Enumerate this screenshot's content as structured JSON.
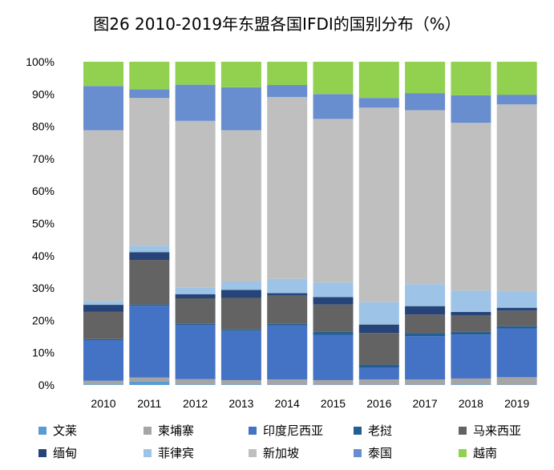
{
  "chart_data": {
    "type": "bar",
    "stacked": true,
    "normalized": true,
    "title": "图26 2010-2019年东盟各国IFDI的国别分布（%）",
    "xlabel": "",
    "ylabel": "",
    "ylim": [
      0,
      100
    ],
    "yticks": [
      "0%",
      "10%",
      "20%",
      "30%",
      "40%",
      "50%",
      "60%",
      "70%",
      "80%",
      "90%",
      "100%"
    ],
    "categories": [
      "2010",
      "2011",
      "2012",
      "2013",
      "2014",
      "2015",
      "2016",
      "2017",
      "2018",
      "2019"
    ],
    "legend_position": "bottom",
    "series": [
      {
        "name": "文莱",
        "color": "#5b9bd5",
        "values": [
          0.2,
          1.0,
          0.2,
          0.2,
          0.1,
          0.1,
          0.1,
          0.1,
          0.2,
          0.1
        ]
      },
      {
        "name": "柬埔寨",
        "color": "#a5a5a5",
        "values": [
          1.1,
          1.3,
          1.6,
          1.3,
          1.6,
          1.4,
          1.6,
          1.6,
          1.8,
          2.3
        ]
      },
      {
        "name": "印度尼西亚",
        "color": "#4472c4",
        "values": [
          12.6,
          22.2,
          16.8,
          15.3,
          16.7,
          14.0,
          3.6,
          13.4,
          13.6,
          15.1
        ]
      },
      {
        "name": "老挝",
        "color": "#255e91",
        "values": [
          0.3,
          0.4,
          0.3,
          0.4,
          0.5,
          0.9,
          1.0,
          1.0,
          0.8,
          0.7
        ]
      },
      {
        "name": "马来西亚",
        "color": "#636363",
        "values": [
          8.5,
          13.8,
          7.9,
          9.7,
          8.8,
          8.5,
          9.8,
          5.7,
          5.1,
          4.8
        ]
      },
      {
        "name": "缅甸",
        "color": "#264478",
        "values": [
          2.1,
          2.4,
          1.3,
          2.5,
          0.7,
          2.3,
          2.6,
          2.6,
          1.1,
          0.9
        ]
      },
      {
        "name": "菲律宾",
        "color": "#9dc3e6",
        "values": [
          1.1,
          2.0,
          2.1,
          2.6,
          4.4,
          4.5,
          6.9,
          6.8,
          6.6,
          5.1
        ]
      },
      {
        "name": "新加坡",
        "color": "#bfbfbf",
        "values": [
          52.9,
          45.7,
          51.5,
          46.8,
          56.3,
          50.6,
          60.2,
          53.8,
          51.9,
          57.8
        ]
      },
      {
        "name": "泰国",
        "color": "#698ed0",
        "values": [
          13.7,
          2.7,
          11.2,
          13.3,
          3.7,
          7.7,
          3.0,
          5.3,
          8.5,
          3.0
        ]
      },
      {
        "name": "越南",
        "color": "#92d050",
        "values": [
          7.5,
          8.5,
          7.1,
          7.9,
          7.2,
          10.0,
          11.2,
          9.7,
          10.4,
          10.2
        ]
      }
    ]
  }
}
